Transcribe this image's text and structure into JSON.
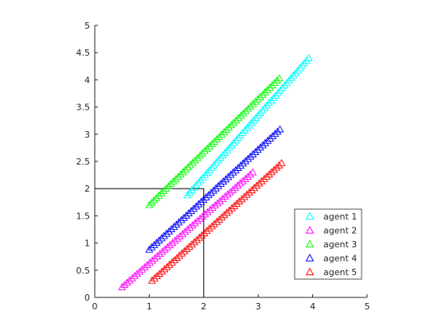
{
  "chart_data": {
    "type": "scatter",
    "marker": "triangle-up",
    "marker_fill": "none",
    "xlim": [
      0,
      5
    ],
    "ylim": [
      0,
      5
    ],
    "x_ticks": [
      "0",
      "1",
      "2",
      "3",
      "4",
      "5"
    ],
    "y_ticks": [
      "0",
      "0.5",
      "1",
      "1.5",
      "2",
      "2.5",
      "3",
      "3.5",
      "4",
      "4.5",
      "5"
    ],
    "title": "",
    "xlabel": "",
    "ylabel": "",
    "grid": false,
    "axes_box": "left-bottom",
    "legend_position": "lower-right",
    "rectangle": {
      "x_range": [
        0,
        2
      ],
      "y_range": [
        0,
        2
      ],
      "color": "#000000"
    },
    "series": [
      {
        "name": "agent 1",
        "color": "#00ffff",
        "x_start": 1.7,
        "y_start": 1.88,
        "x_end": 3.93,
        "y_end": 4.4
      },
      {
        "name": "agent 2",
        "color": "#ff00ff",
        "x_start": 0.5,
        "y_start": 0.19,
        "x_end": 2.9,
        "y_end": 2.3
      },
      {
        "name": "agent 3",
        "color": "#00ff00",
        "x_start": 1.0,
        "y_start": 1.7,
        "x_end": 3.39,
        "y_end": 4.03
      },
      {
        "name": "agent 4",
        "color": "#0000ff",
        "x_start": 1.0,
        "y_start": 0.88,
        "x_end": 3.4,
        "y_end": 3.09
      },
      {
        "name": "agent 5",
        "color": "#ff0000",
        "x_start": 1.05,
        "y_start": 0.31,
        "x_end": 3.43,
        "y_end": 2.47
      }
    ]
  }
}
